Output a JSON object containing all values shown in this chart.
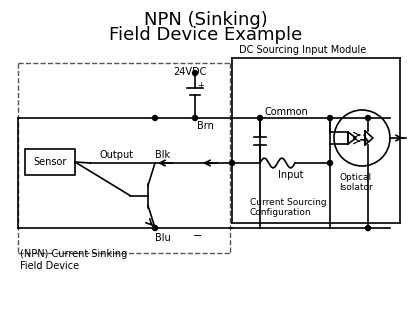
{
  "title_line1": "NPN (Sinking)",
  "title_line2": "Field Device Example",
  "title_fontsize": 13,
  "bg_color": "#ffffff",
  "line_color": "#000000",
  "dashed_color": "#444444",
  "label_24vdc": "24VDC",
  "label_brn": "Brn",
  "label_blk": "Blk",
  "label_blu": "Blu",
  "label_common": "Common",
  "label_input": "Input",
  "label_output": "Output",
  "label_sensor": "Sensor",
  "label_dc_module": "DC Sourcing Input Module",
  "label_optical": "Optical\nIsolator",
  "label_current": "Current Sourcing\nConfiguration",
  "label_npn": "(NPN) Current Sinking\nField Device"
}
